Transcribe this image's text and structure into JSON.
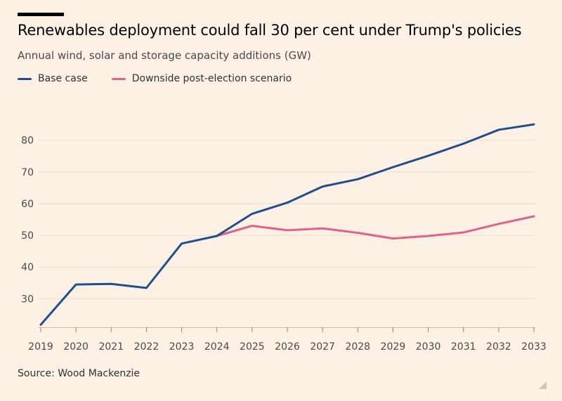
{
  "header": {
    "title": "Renewables deployment could fall 30 per cent under Trump's policies",
    "subtitle": "Annual wind, solar and storage capacity additions (GW)"
  },
  "legend": {
    "items": [
      {
        "label": "Base case",
        "color": "#1f4e8c"
      },
      {
        "label": "Downside post-election scenario",
        "color": "#e0628b"
      }
    ]
  },
  "footer": {
    "source": "Source: Wood Mackenzie"
  },
  "chart_data": {
    "type": "line",
    "title": "Renewables deployment could fall 30 per cent under Trump's policies",
    "subtitle": "Annual wind, solar and storage capacity additions (GW)",
    "xlabel": "",
    "ylabel": "",
    "x": [
      2019,
      2020,
      2021,
      2022,
      2023,
      2024,
      2025,
      2026,
      2027,
      2028,
      2029,
      2030,
      2031,
      2032,
      2033
    ],
    "ylim": [
      21,
      91
    ],
    "yticks": [
      30,
      40,
      50,
      60,
      70,
      80
    ],
    "grid": true,
    "legend_position": "top-left",
    "series": [
      {
        "name": "Base case",
        "color": "#1f4e8c",
        "x": [
          2019,
          2020,
          2021,
          2022,
          2023,
          2024,
          2025,
          2026,
          2027,
          2028,
          2029,
          2030,
          2031,
          2032,
          2033
        ],
        "values": [
          21.8,
          34.5,
          34.7,
          33.4,
          47.4,
          49.8,
          56.8,
          60.3,
          65.4,
          67.7,
          71.5,
          75.1,
          78.9,
          83.3,
          85.0
        ]
      },
      {
        "name": "Downside post-election scenario",
        "color": "#e0628b",
        "x": [
          2024,
          2025,
          2026,
          2027,
          2028,
          2029,
          2030,
          2031,
          2032,
          2033
        ],
        "values": [
          49.8,
          53.0,
          51.6,
          52.2,
          50.8,
          49.0,
          49.8,
          50.9,
          53.6,
          56.0
        ]
      }
    ],
    "source": "Source: Wood Mackenzie"
  }
}
